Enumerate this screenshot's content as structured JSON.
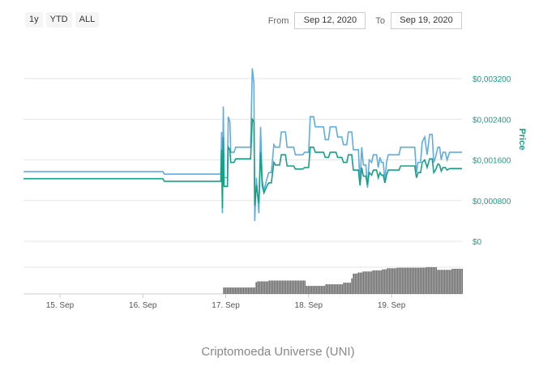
{
  "range_buttons": [
    "1y",
    "YTD",
    "ALL"
  ],
  "date_range": {
    "from_label": "From",
    "from_value": "Sep 12, 2020",
    "to_label": "To",
    "to_value": "Sep 19, 2020"
  },
  "caption": "Criptomoeda Universe (UNI)",
  "colors": {
    "series_light": "#5dade2",
    "series_dark": "#16a085",
    "volume": "#5a5a5a",
    "axis_text": "#16a085",
    "grid": "#e6e6e6"
  },
  "chart_data": {
    "type": "line",
    "ylabel": "Price",
    "ylim": [
      0,
      0.0032
    ],
    "yticks": [
      {
        "value": 0,
        "label": "$0"
      },
      {
        "value": 0.0008,
        "label": "$0,000800"
      },
      {
        "value": 0.0016,
        "label": "$0,001600"
      },
      {
        "value": 0.0024,
        "label": "$0,002400"
      },
      {
        "value": 0.0032,
        "label": "$0,003200"
      }
    ],
    "xticks": [
      {
        "x": 15.0,
        "label": "15. Sep"
      },
      {
        "x": 16.0,
        "label": "16. Sep"
      },
      {
        "x": 17.0,
        "label": "17. Sep"
      },
      {
        "x": 18.0,
        "label": "18. Sep"
      },
      {
        "x": 19.0,
        "label": "19. Sep"
      }
    ],
    "xlim": [
      14.56,
      19.85
    ],
    "series": [
      {
        "color": "#5dade2",
        "points": [
          [
            14.56,
            0.00137
          ],
          [
            16.24,
            0.00137
          ],
          [
            16.26,
            0.00132
          ],
          [
            16.94,
            0.00132
          ],
          [
            16.95,
            0.00215
          ],
          [
            16.96,
            0.00055
          ],
          [
            16.97,
            0.00265
          ],
          [
            16.98,
            0.00125
          ],
          [
            17.02,
            0.00125
          ],
          [
            17.03,
            0.00245
          ],
          [
            17.05,
            0.00235
          ],
          [
            17.06,
            0.00175
          ],
          [
            17.1,
            0.00175
          ],
          [
            17.12,
            0.00185
          ],
          [
            17.3,
            0.00185
          ],
          [
            17.32,
            0.0034
          ],
          [
            17.34,
            0.0031
          ],
          [
            17.35,
            0.0004
          ],
          [
            17.37,
            0.00125
          ],
          [
            17.4,
            0.00055
          ],
          [
            17.42,
            0.00225
          ],
          [
            17.44,
            0.0012
          ],
          [
            17.46,
            0.001
          ],
          [
            17.5,
            0.00125
          ],
          [
            17.52,
            0.00135
          ],
          [
            17.55,
            0.00135
          ],
          [
            17.58,
            0.0019
          ],
          [
            17.6,
            0.00185
          ],
          [
            17.65,
            0.00185
          ],
          [
            17.67,
            0.00215
          ],
          [
            17.72,
            0.00215
          ],
          [
            17.74,
            0.00185
          ],
          [
            17.82,
            0.00185
          ],
          [
            17.84,
            0.0017
          ],
          [
            17.93,
            0.0017
          ],
          [
            17.95,
            0.00175
          ],
          [
            18.0,
            0.00175
          ],
          [
            18.02,
            0.00245
          ],
          [
            18.06,
            0.00245
          ],
          [
            18.08,
            0.00225
          ],
          [
            18.18,
            0.00225
          ],
          [
            18.2,
            0.002
          ],
          [
            18.24,
            0.002
          ],
          [
            18.26,
            0.00225
          ],
          [
            18.33,
            0.00225
          ],
          [
            18.35,
            0.00205
          ],
          [
            18.4,
            0.00205
          ],
          [
            18.42,
            0.0019
          ],
          [
            18.46,
            0.0019
          ],
          [
            18.48,
            0.00215
          ],
          [
            18.52,
            0.00215
          ],
          [
            18.54,
            0.0018
          ],
          [
            18.6,
            0.0018
          ],
          [
            18.62,
            0.00115
          ],
          [
            18.64,
            0.00185
          ],
          [
            18.66,
            0.0015
          ],
          [
            18.69,
            0.0015
          ],
          [
            18.71,
            0.00105
          ],
          [
            18.73,
            0.0016
          ],
          [
            18.76,
            0.00155
          ],
          [
            18.78,
            0.0017
          ],
          [
            18.82,
            0.0017
          ],
          [
            18.84,
            0.00145
          ],
          [
            18.86,
            0.00165
          ],
          [
            18.88,
            0.00155
          ],
          [
            18.9,
            0.00155
          ],
          [
            18.92,
            0.0012
          ],
          [
            18.94,
            0.00155
          ],
          [
            18.96,
            0.0017
          ],
          [
            19.09,
            0.0017
          ],
          [
            19.11,
            0.00185
          ],
          [
            19.28,
            0.00185
          ],
          [
            19.3,
            0.00135
          ],
          [
            19.32,
            0.00155
          ],
          [
            19.35,
            0.00155
          ],
          [
            19.37,
            0.00195
          ],
          [
            19.4,
            0.00205
          ],
          [
            19.43,
            0.0017
          ],
          [
            19.46,
            0.0021
          ],
          [
            19.49,
            0.0021
          ],
          [
            19.51,
            0.00155
          ],
          [
            19.53,
            0.00165
          ],
          [
            19.56,
            0.00185
          ],
          [
            19.58,
            0.00185
          ],
          [
            19.6,
            0.0016
          ],
          [
            19.62,
            0.00175
          ],
          [
            19.65,
            0.00175
          ],
          [
            19.67,
            0.0016
          ],
          [
            19.7,
            0.00175
          ],
          [
            19.85,
            0.00175
          ]
        ]
      },
      {
        "color": "#16a085",
        "points": [
          [
            14.56,
            0.00123
          ],
          [
            16.24,
            0.00123
          ],
          [
            16.26,
            0.00118
          ],
          [
            16.94,
            0.00118
          ],
          [
            16.95,
            0.0018
          ],
          [
            16.96,
            0.00065
          ],
          [
            16.97,
            0.00205
          ],
          [
            16.98,
            0.00108
          ],
          [
            17.02,
            0.00108
          ],
          [
            17.03,
            0.00185
          ],
          [
            17.05,
            0.0018
          ],
          [
            17.06,
            0.00155
          ],
          [
            17.1,
            0.00155
          ],
          [
            17.12,
            0.00162
          ],
          [
            17.3,
            0.00162
          ],
          [
            17.32,
            0.0024
          ],
          [
            17.34,
            0.00235
          ],
          [
            17.35,
            0.0007
          ],
          [
            17.37,
            0.0011
          ],
          [
            17.4,
            0.00075
          ],
          [
            17.42,
            0.00175
          ],
          [
            17.44,
            0.0011
          ],
          [
            17.46,
            0.00095
          ],
          [
            17.5,
            0.0011
          ],
          [
            17.52,
            0.00115
          ],
          [
            17.55,
            0.00115
          ],
          [
            17.58,
            0.00155
          ],
          [
            17.6,
            0.0015
          ],
          [
            17.65,
            0.0015
          ],
          [
            17.67,
            0.0017
          ],
          [
            17.72,
            0.0017
          ],
          [
            17.74,
            0.00148
          ],
          [
            17.82,
            0.00148
          ],
          [
            17.84,
            0.00142
          ],
          [
            17.93,
            0.00142
          ],
          [
            17.95,
            0.00145
          ],
          [
            18.0,
            0.00145
          ],
          [
            18.02,
            0.00185
          ],
          [
            18.06,
            0.00185
          ],
          [
            18.08,
            0.00175
          ],
          [
            18.18,
            0.00175
          ],
          [
            18.2,
            0.00165
          ],
          [
            18.24,
            0.00165
          ],
          [
            18.26,
            0.00175
          ],
          [
            18.33,
            0.00175
          ],
          [
            18.35,
            0.00165
          ],
          [
            18.4,
            0.00165
          ],
          [
            18.42,
            0.00155
          ],
          [
            18.46,
            0.00155
          ],
          [
            18.48,
            0.0017
          ],
          [
            18.52,
            0.0017
          ],
          [
            18.54,
            0.0014
          ],
          [
            18.6,
            0.0014
          ],
          [
            18.62,
            0.0011
          ],
          [
            18.64,
            0.00145
          ],
          [
            18.66,
            0.00128
          ],
          [
            18.69,
            0.00128
          ],
          [
            18.71,
            0.0011
          ],
          [
            18.73,
            0.00135
          ],
          [
            18.76,
            0.0013
          ],
          [
            18.78,
            0.0014
          ],
          [
            18.82,
            0.0014
          ],
          [
            18.84,
            0.00125
          ],
          [
            18.86,
            0.00135
          ],
          [
            18.88,
            0.0013
          ],
          [
            18.9,
            0.0013
          ],
          [
            18.92,
            0.00115
          ],
          [
            18.94,
            0.0013
          ],
          [
            18.96,
            0.0014
          ],
          [
            19.09,
            0.0014
          ],
          [
            19.11,
            0.00148
          ],
          [
            19.28,
            0.00148
          ],
          [
            19.3,
            0.00125
          ],
          [
            19.32,
            0.00135
          ],
          [
            19.35,
            0.00135
          ],
          [
            19.37,
            0.00155
          ],
          [
            19.4,
            0.0016
          ],
          [
            19.43,
            0.00145
          ],
          [
            19.46,
            0.00162
          ],
          [
            19.49,
            0.00162
          ],
          [
            19.51,
            0.00135
          ],
          [
            19.53,
            0.0014
          ],
          [
            19.56,
            0.00152
          ],
          [
            19.58,
            0.0015
          ],
          [
            19.6,
            0.00138
          ],
          [
            19.62,
            0.00145
          ],
          [
            19.65,
            0.00145
          ],
          [
            19.67,
            0.0014
          ],
          [
            19.7,
            0.00143
          ],
          [
            19.85,
            0.00143
          ]
        ]
      }
    ],
    "volume_relative": [
      [
        16.97,
        0.24
      ],
      [
        17.35,
        0.24
      ],
      [
        17.36,
        0.44
      ],
      [
        17.37,
        0.44
      ],
      [
        17.38,
        0.47
      ],
      [
        17.5,
        0.47
      ],
      [
        17.51,
        0.5
      ],
      [
        17.95,
        0.5
      ],
      [
        17.96,
        0.3
      ],
      [
        18.18,
        0.3
      ],
      [
        18.19,
        0.36
      ],
      [
        18.4,
        0.36
      ],
      [
        18.41,
        0.42
      ],
      [
        18.5,
        0.42
      ],
      [
        18.51,
        0.58
      ],
      [
        18.53,
        0.76
      ],
      [
        18.58,
        0.8
      ],
      [
        18.65,
        0.84
      ],
      [
        18.75,
        0.88
      ],
      [
        18.87,
        0.92
      ],
      [
        18.94,
        0.96
      ],
      [
        19.05,
        0.98
      ],
      [
        19.4,
        1.0
      ],
      [
        19.53,
        1.0
      ],
      [
        19.54,
        0.9
      ],
      [
        19.7,
        0.9
      ],
      [
        19.71,
        0.94
      ],
      [
        19.85,
        0.94
      ]
    ]
  }
}
